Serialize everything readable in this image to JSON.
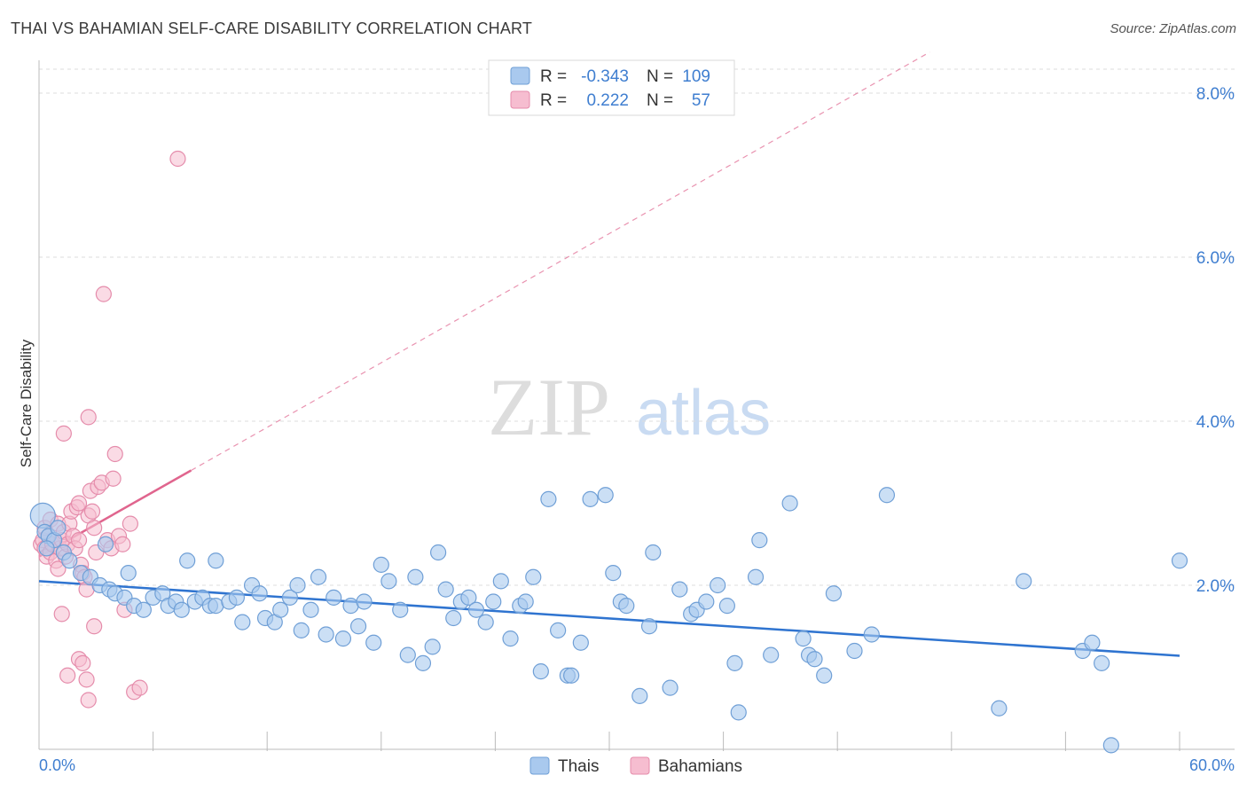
{
  "title": "THAI VS BAHAMIAN SELF-CARE DISABILITY CORRELATION CHART",
  "source": "Source: ZipAtlas.com",
  "watermark": {
    "zip": "ZIP",
    "atlas": "atlas"
  },
  "colors": {
    "blue_fill": "#a9c9ee",
    "blue_stroke": "#6f9fd6",
    "blue_line": "#2f74d0",
    "pink_fill": "#f6bdd0",
    "pink_stroke": "#e58cab",
    "pink_line": "#e0658e",
    "axis_text": "#3f7ed0",
    "grid": "#dddddd"
  },
  "legend": {
    "rows": [
      {
        "r_label": "R =",
        "r_value": "-0.343",
        "n_label": "N =",
        "n_value": "109"
      },
      {
        "r_label": "R =",
        "r_value": "0.222",
        "n_label": "N =",
        "n_value": "57"
      }
    ]
  },
  "bottom_legend": [
    "Thais",
    "Bahamians"
  ],
  "chart_data": {
    "type": "scatter",
    "title": "THAI VS BAHAMIAN SELF-CARE DISABILITY CORRELATION CHART",
    "xlabel": "",
    "ylabel": "Self-Care Disability",
    "xlim": [
      0,
      60
    ],
    "ylim": [
      0,
      8.4
    ],
    "x_tick_labels": [
      "0.0%",
      "60.0%"
    ],
    "y_tick_labels": [
      "2.0%",
      "4.0%",
      "6.0%",
      "8.0%"
    ],
    "y_ticks": [
      2,
      4,
      6,
      8
    ],
    "grid": true,
    "legend_position": "top-center",
    "series": [
      {
        "name": "Thais",
        "r": -0.343,
        "n": 109,
        "trend": {
          "x": [
            0,
            60
          ],
          "y": [
            2.05,
            1.14
          ]
        },
        "points": [
          [
            0.2,
            2.85
          ],
          [
            0.3,
            2.65
          ],
          [
            0.5,
            2.6
          ],
          [
            0.8,
            2.55
          ],
          [
            0.4,
            2.45
          ],
          [
            1.0,
            2.7
          ],
          [
            1.3,
            2.4
          ],
          [
            1.6,
            2.3
          ],
          [
            2.2,
            2.15
          ],
          [
            2.7,
            2.1
          ],
          [
            3.2,
            2.0
          ],
          [
            3.5,
            2.5
          ],
          [
            3.7,
            1.95
          ],
          [
            4.0,
            1.9
          ],
          [
            4.5,
            1.85
          ],
          [
            4.7,
            2.15
          ],
          [
            5.0,
            1.75
          ],
          [
            5.5,
            1.7
          ],
          [
            6.0,
            1.85
          ],
          [
            6.5,
            1.9
          ],
          [
            6.8,
            1.75
          ],
          [
            7.2,
            1.8
          ],
          [
            7.5,
            1.7
          ],
          [
            7.8,
            2.3
          ],
          [
            8.2,
            1.8
          ],
          [
            8.6,
            1.85
          ],
          [
            9.0,
            1.75
          ],
          [
            9.3,
            1.75
          ],
          [
            9.3,
            2.3
          ],
          [
            10.0,
            1.8
          ],
          [
            10.4,
            1.85
          ],
          [
            10.7,
            1.55
          ],
          [
            11.2,
            2.0
          ],
          [
            11.6,
            1.9
          ],
          [
            11.9,
            1.6
          ],
          [
            12.4,
            1.55
          ],
          [
            12.7,
            1.7
          ],
          [
            13.2,
            1.85
          ],
          [
            13.6,
            2.0
          ],
          [
            13.8,
            1.45
          ],
          [
            14.3,
            1.7
          ],
          [
            14.7,
            2.1
          ],
          [
            15.1,
            1.4
          ],
          [
            15.5,
            1.85
          ],
          [
            16.0,
            1.35
          ],
          [
            16.4,
            1.75
          ],
          [
            16.8,
            1.5
          ],
          [
            17.1,
            1.8
          ],
          [
            17.6,
            1.3
          ],
          [
            18.0,
            2.25
          ],
          [
            18.4,
            2.05
          ],
          [
            19.0,
            1.7
          ],
          [
            19.4,
            1.15
          ],
          [
            19.8,
            2.1
          ],
          [
            20.2,
            1.05
          ],
          [
            20.7,
            1.25
          ],
          [
            21.0,
            2.4
          ],
          [
            21.4,
            1.95
          ],
          [
            21.8,
            1.6
          ],
          [
            22.2,
            1.8
          ],
          [
            22.6,
            1.85
          ],
          [
            23.0,
            1.7
          ],
          [
            23.5,
            1.55
          ],
          [
            23.9,
            1.8
          ],
          [
            24.3,
            2.05
          ],
          [
            24.8,
            1.35
          ],
          [
            25.3,
            1.75
          ],
          [
            25.6,
            1.8
          ],
          [
            26.0,
            2.1
          ],
          [
            26.4,
            0.95
          ],
          [
            26.8,
            3.05
          ],
          [
            27.3,
            1.45
          ],
          [
            27.8,
            0.9
          ],
          [
            28.0,
            0.9
          ],
          [
            28.5,
            1.3
          ],
          [
            29.0,
            3.05
          ],
          [
            29.8,
            3.1
          ],
          [
            30.2,
            2.15
          ],
          [
            30.6,
            1.8
          ],
          [
            30.9,
            1.75
          ],
          [
            31.6,
            0.65
          ],
          [
            32.1,
            1.5
          ],
          [
            32.3,
            2.4
          ],
          [
            33.2,
            0.75
          ],
          [
            33.7,
            1.95
          ],
          [
            34.3,
            1.65
          ],
          [
            34.6,
            1.7
          ],
          [
            35.1,
            1.8
          ],
          [
            35.7,
            2.0
          ],
          [
            36.2,
            1.75
          ],
          [
            36.6,
            1.05
          ],
          [
            36.8,
            0.45
          ],
          [
            37.7,
            2.1
          ],
          [
            37.9,
            2.55
          ],
          [
            38.5,
            1.15
          ],
          [
            39.5,
            3.0
          ],
          [
            40.2,
            1.35
          ],
          [
            40.5,
            1.15
          ],
          [
            40.8,
            1.1
          ],
          [
            41.3,
            0.9
          ],
          [
            41.8,
            1.9
          ],
          [
            42.9,
            1.2
          ],
          [
            43.8,
            1.4
          ],
          [
            44.6,
            3.1
          ],
          [
            50.5,
            0.5
          ],
          [
            51.8,
            2.05
          ],
          [
            54.9,
            1.2
          ],
          [
            55.4,
            1.3
          ],
          [
            55.9,
            1.05
          ],
          [
            56.4,
            0.05
          ],
          [
            60.0,
            2.3
          ]
        ]
      },
      {
        "name": "Bahamians",
        "r": 0.222,
        "n": 57,
        "trend": {
          "x": [
            0,
            8
          ],
          "y": [
            2.35,
            3.4
          ]
        },
        "points": [
          [
            0.1,
            2.5
          ],
          [
            0.2,
            2.55
          ],
          [
            0.3,
            2.45
          ],
          [
            0.3,
            2.7
          ],
          [
            0.4,
            2.35
          ],
          [
            0.5,
            2.6
          ],
          [
            0.6,
            2.4
          ],
          [
            0.6,
            2.8
          ],
          [
            0.7,
            2.5
          ],
          [
            0.8,
            2.55
          ],
          [
            0.9,
            2.3
          ],
          [
            1.0,
            2.2
          ],
          [
            1.0,
            2.75
          ],
          [
            1.1,
            2.45
          ],
          [
            1.2,
            2.55
          ],
          [
            1.3,
            2.65
          ],
          [
            1.4,
            2.35
          ],
          [
            1.5,
            2.5
          ],
          [
            1.6,
            2.75
          ],
          [
            1.7,
            2.9
          ],
          [
            1.8,
            2.6
          ],
          [
            1.9,
            2.45
          ],
          [
            2.0,
            2.95
          ],
          [
            2.1,
            3.0
          ],
          [
            2.1,
            2.55
          ],
          [
            2.2,
            2.25
          ],
          [
            2.3,
            2.15
          ],
          [
            2.4,
            2.1
          ],
          [
            2.5,
            1.95
          ],
          [
            2.6,
            2.85
          ],
          [
            2.7,
            3.15
          ],
          [
            2.8,
            2.9
          ],
          [
            2.9,
            2.7
          ],
          [
            3.0,
            2.4
          ],
          [
            3.1,
            3.2
          ],
          [
            3.3,
            3.25
          ],
          [
            3.6,
            2.55
          ],
          [
            3.8,
            2.45
          ],
          [
            3.9,
            3.3
          ],
          [
            4.0,
            3.6
          ],
          [
            4.2,
            2.6
          ],
          [
            4.4,
            2.5
          ],
          [
            4.5,
            1.7
          ],
          [
            4.8,
            2.75
          ],
          [
            5.0,
            0.7
          ],
          [
            5.3,
            0.75
          ],
          [
            1.2,
            1.65
          ],
          [
            1.5,
            0.9
          ],
          [
            2.1,
            1.1
          ],
          [
            2.3,
            1.05
          ],
          [
            2.5,
            0.85
          ],
          [
            2.6,
            0.6
          ],
          [
            2.9,
            1.5
          ],
          [
            1.3,
            3.85
          ],
          [
            2.6,
            4.05
          ],
          [
            3.4,
            5.55
          ],
          [
            7.3,
            7.2
          ]
        ]
      }
    ]
  }
}
